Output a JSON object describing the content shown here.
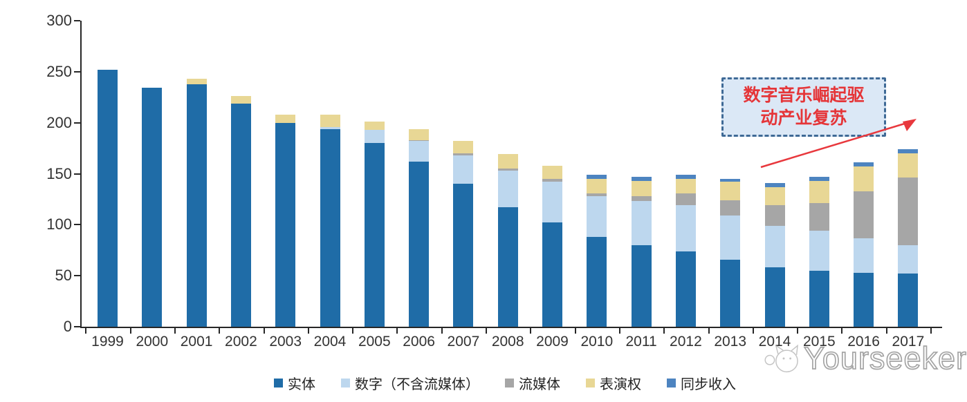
{
  "chart_data": {
    "type": "bar",
    "stacked": true,
    "title": "",
    "categories": [
      "1999",
      "2000",
      "2001",
      "2002",
      "2003",
      "2004",
      "2005",
      "2006",
      "2007",
      "2008",
      "2009",
      "2010",
      "2011",
      "2012",
      "2013",
      "2014",
      "2015",
      "2016",
      "2017"
    ],
    "series": [
      {
        "key": "physical",
        "name": "实体",
        "color": "#1F6CA7",
        "values": [
          252,
          234,
          238,
          219,
          200,
          194,
          180,
          162,
          140,
          117,
          102,
          88,
          80,
          74,
          66,
          58,
          55,
          53,
          52
        ]
      },
      {
        "key": "digital-ex-streaming",
        "name": "数字（不含流媒体）",
        "color": "#BDD7EE",
        "values": [
          0,
          0,
          0,
          0,
          0,
          2,
          13,
          20,
          28,
          36,
          40,
          40,
          43,
          45,
          43,
          41,
          39,
          34,
          28
        ]
      },
      {
        "key": "streaming",
        "name": "流媒体",
        "color": "#A6A6A6",
        "values": [
          0,
          0,
          0,
          0,
          0,
          0,
          0,
          1,
          2,
          2,
          3,
          3,
          5,
          12,
          15,
          20,
          27,
          46,
          66
        ]
      },
      {
        "key": "performance-rights",
        "name": "表演权",
        "color": "#E8D795",
        "values": [
          0,
          0,
          5,
          7,
          8,
          12,
          8,
          11,
          12,
          14,
          13,
          14,
          15,
          14,
          18,
          18,
          22,
          24,
          24
        ]
      },
      {
        "key": "sync-revenue",
        "name": "同步收入",
        "color": "#4D84C0",
        "values": [
          0,
          0,
          0,
          0,
          0,
          0,
          0,
          0,
          0,
          0,
          0,
          4,
          4,
          4,
          3,
          4,
          4,
          4,
          4
        ]
      }
    ],
    "totals": [
      252,
      234,
      243,
      226,
      208,
      208,
      201,
      194,
      182,
      169,
      158,
      149,
      147,
      149,
      145,
      141,
      147,
      161,
      174
    ],
    "ylim": [
      0,
      300
    ],
    "yticks": [
      0,
      50,
      100,
      150,
      200,
      250,
      300
    ],
    "grid": false,
    "legend_position": "bottom"
  },
  "annotation": {
    "full_text": "数字音乐崛起驱动产业复苏",
    "line1": "数字音乐崛起驱",
    "line2": "动产业复苏",
    "text_color": "#E53538",
    "border_color": "#3F6A96",
    "fill_color": "#DBE8F6",
    "arrow_color": "#E8383D"
  },
  "watermark": {
    "text": "Yourseeker"
  }
}
